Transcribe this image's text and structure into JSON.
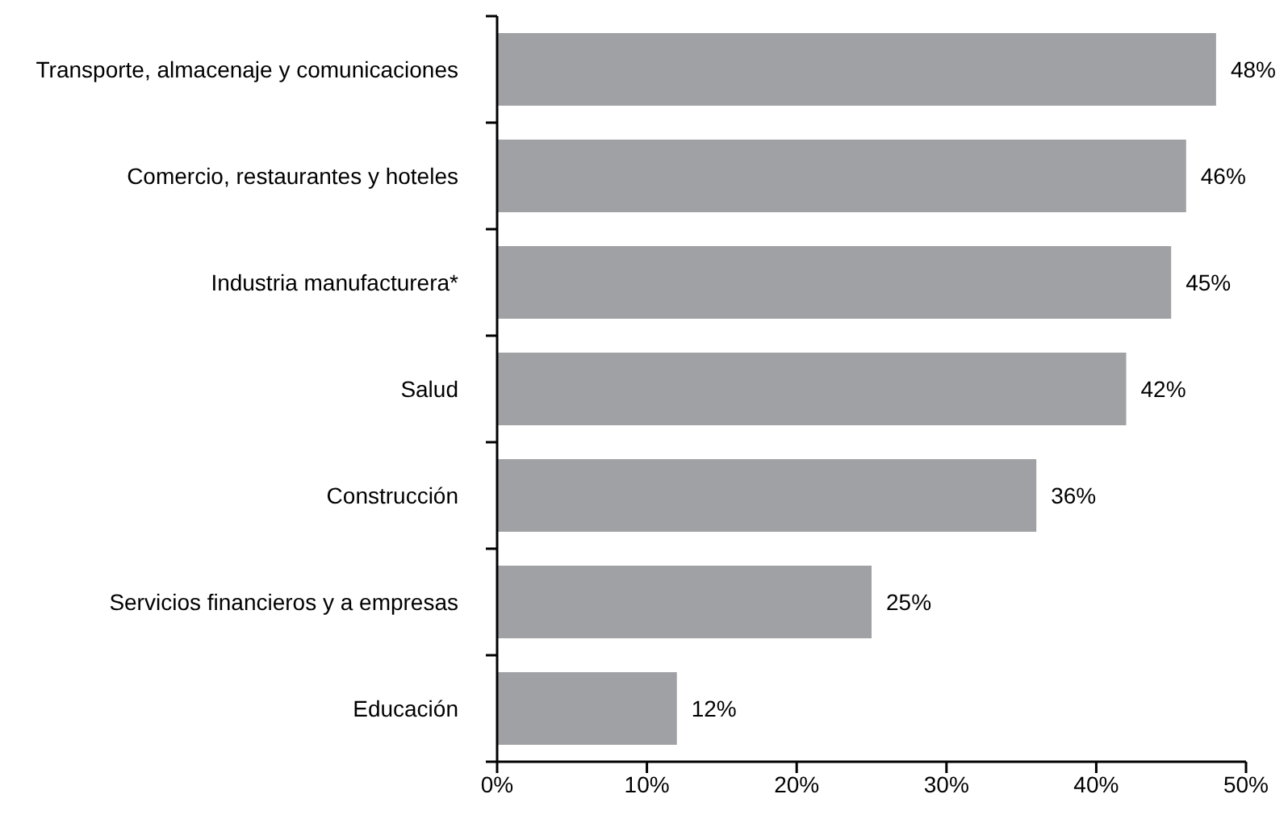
{
  "chart_data": {
    "type": "bar",
    "orientation": "horizontal",
    "categories": [
      "Transporte, almacenaje y comunicaciones",
      "Comercio, restaurantes y hoteles",
      "Industria manufacturera*",
      "Salud",
      "Construcción",
      "Servicios financieros y a empresas",
      "Educación"
    ],
    "values": [
      48,
      46,
      45,
      42,
      36,
      25,
      12
    ],
    "value_labels": [
      "48%",
      "46%",
      "45%",
      "42%",
      "36%",
      "25%",
      "12%"
    ],
    "color": "#a0a1a4",
    "xlim": [
      0,
      50
    ],
    "xticks": [
      {
        "value": 0,
        "label": "0%"
      },
      {
        "value": 10,
        "label": "10%"
      },
      {
        "value": 20,
        "label": "20%"
      },
      {
        "value": 30,
        "label": "30%"
      },
      {
        "value": 40,
        "label": "40%"
      },
      {
        "value": 50,
        "label": "50%"
      }
    ]
  }
}
